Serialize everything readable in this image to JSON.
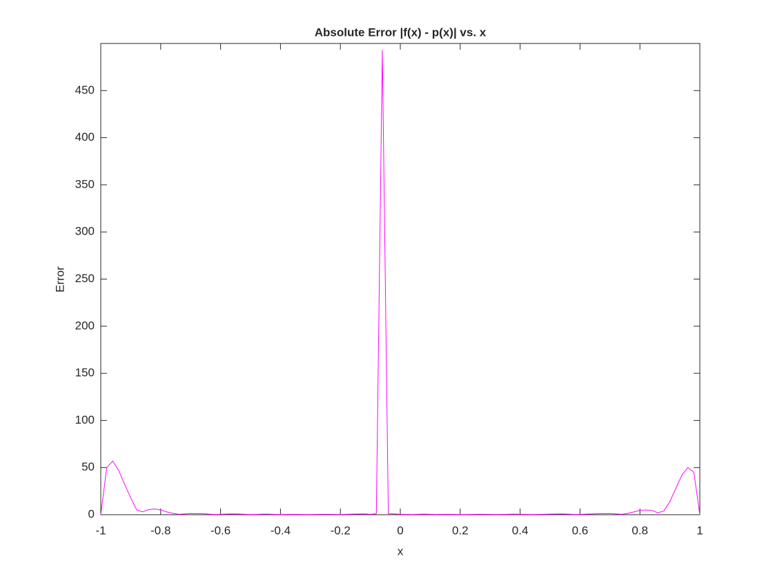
{
  "chart_data": {
    "type": "line",
    "title": "Absolute Error |f(x) - p(x)| vs. x",
    "x_label": "x",
    "y_label": "Error",
    "x": [
      -1,
      -0.98,
      -0.96,
      -0.94,
      -0.92,
      -0.9,
      -0.88,
      -0.86,
      -0.84,
      -0.82,
      -0.8,
      -0.78,
      -0.76,
      -0.74,
      -0.72,
      -0.7,
      -0.68,
      -0.66,
      -0.64,
      -0.62,
      -0.6,
      -0.58,
      -0.56,
      -0.54,
      -0.52,
      -0.5,
      -0.48,
      -0.46,
      -0.44,
      -0.42,
      -0.4,
      -0.38,
      -0.36,
      -0.34,
      -0.32,
      -0.3,
      -0.28,
      -0.26,
      -0.24,
      -0.22,
      -0.2,
      -0.18,
      -0.16,
      -0.14,
      -0.12,
      -0.1,
      -0.08,
      -0.06,
      -0.04,
      -0.02,
      0,
      0.02,
      0.04,
      0.06,
      0.08,
      0.1,
      0.12,
      0.14,
      0.16,
      0.18,
      0.2,
      0.22,
      0.24,
      0.26,
      0.28,
      0.3,
      0.32,
      0.34,
      0.36,
      0.38,
      0.4,
      0.42,
      0.44,
      0.46,
      0.48,
      0.5,
      0.52,
      0.54,
      0.56,
      0.58,
      0.6,
      0.62,
      0.64,
      0.66,
      0.68,
      0.7,
      0.72,
      0.74,
      0.76,
      0.78,
      0.8,
      0.82,
      0.84,
      0.86,
      0.88,
      0.9,
      0.92,
      0.94,
      0.96,
      0.98,
      1
    ],
    "series": [
      {
        "name": "Error",
        "color": "#ff00ff",
        "values": [
          0,
          50,
          57,
          47,
          32,
          18,
          5,
          3,
          5.5,
          6,
          5,
          3,
          1.5,
          0.5,
          0.8,
          1.2,
          1.2,
          1,
          0.6,
          0.3,
          0.5,
          0.7,
          0.8,
          0.7,
          0.5,
          0.3,
          0.4,
          0.6,
          0.6,
          0.4,
          0.3,
          0.4,
          0.5,
          0.4,
          0.3,
          0.3,
          0.4,
          0.5,
          0.5,
          0.4,
          0.3,
          0.5,
          0.6,
          0.7,
          0.8,
          0.5,
          1,
          493,
          1,
          0.8,
          0.5,
          0.4,
          0.3,
          0.5,
          0.6,
          0.5,
          0.3,
          0.4,
          0.5,
          0.4,
          0.3,
          0.3,
          0.4,
          0.5,
          0.5,
          0.4,
          0.3,
          0.4,
          0.5,
          0.6,
          0.5,
          0.4,
          0.3,
          0.4,
          0.5,
          0.6,
          0.7,
          0.8,
          0.6,
          0.3,
          0.4,
          0.6,
          0.8,
          1,
          1.2,
          1.2,
          0.8,
          0.5,
          1.5,
          3,
          4.5,
          5,
          4.5,
          2,
          4,
          14,
          28,
          42,
          50,
          45,
          0
        ]
      }
    ],
    "xlim": [
      -1,
      1
    ],
    "ylim": [
      0,
      500
    ],
    "xticks": [
      -1,
      -0.8,
      -0.6,
      -0.4,
      -0.2,
      0,
      0.2,
      0.4,
      0.6,
      0.8,
      1
    ],
    "yticks": [
      0,
      50,
      100,
      150,
      200,
      250,
      300,
      350,
      400,
      450
    ]
  }
}
